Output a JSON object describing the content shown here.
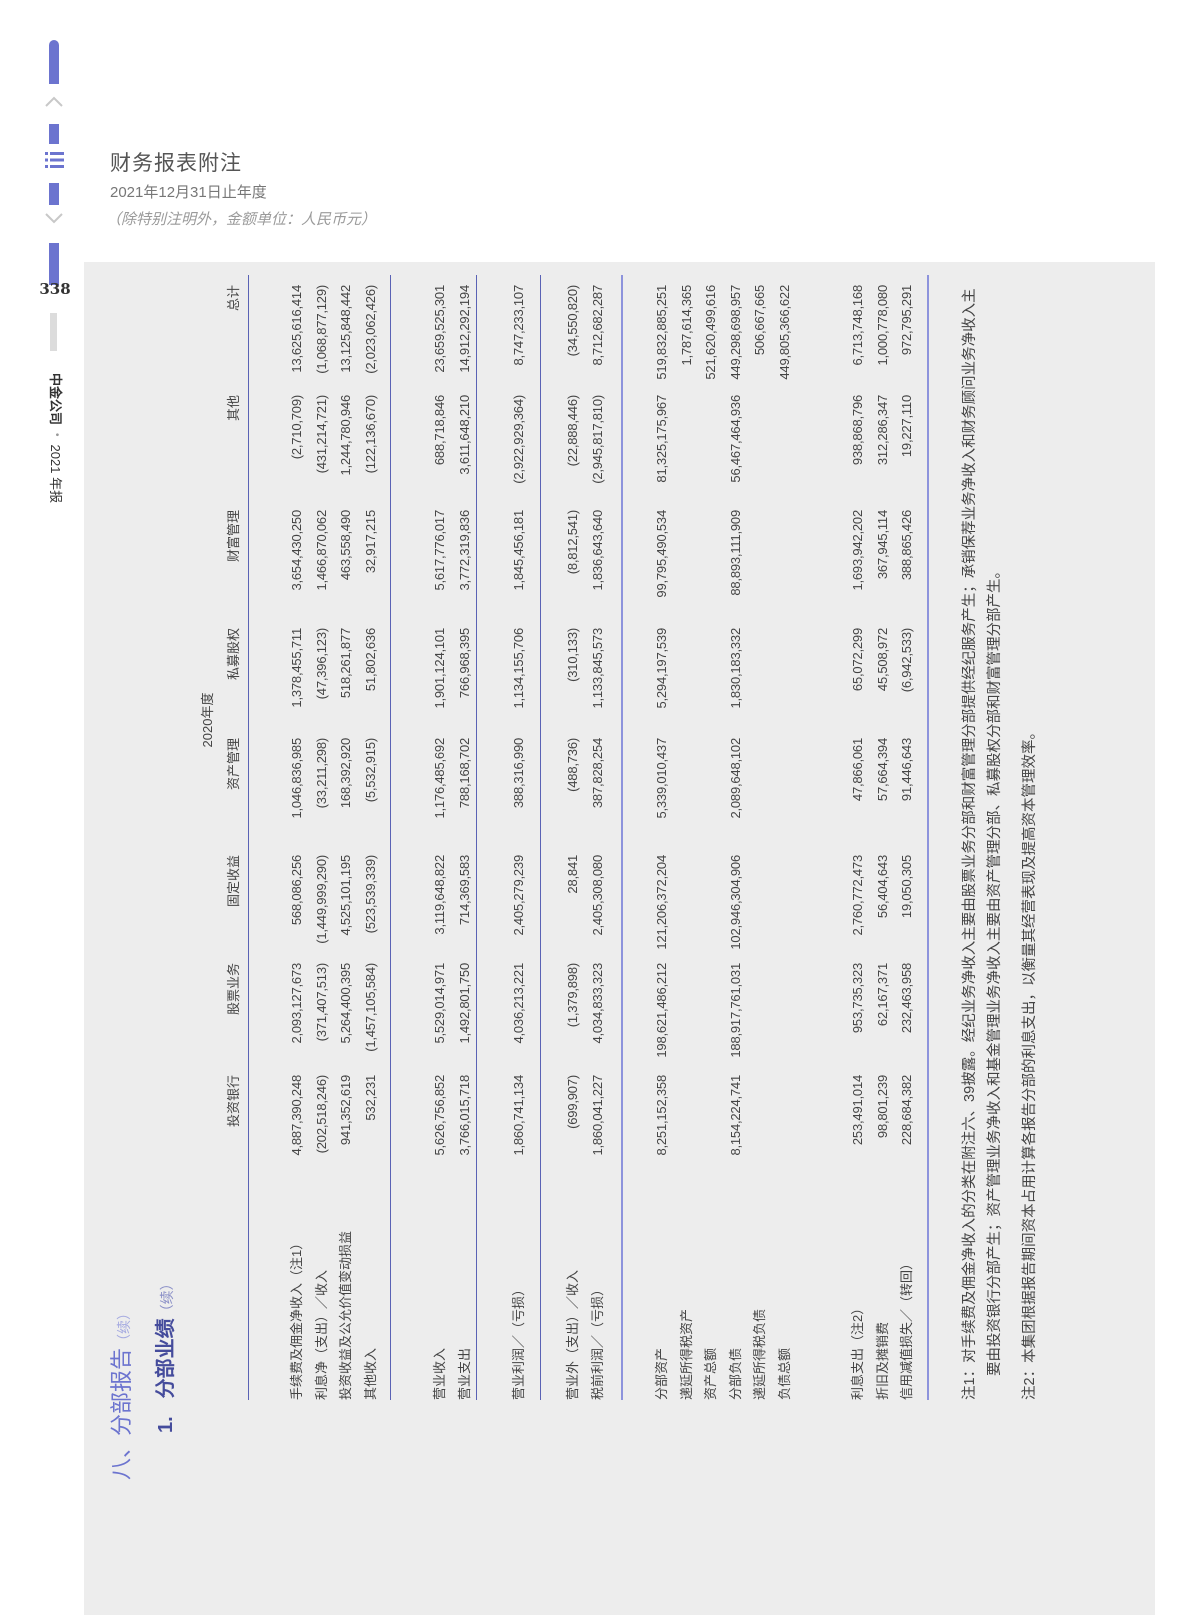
{
  "sidebar": {
    "page_number": "338",
    "company": "中金公司",
    "separator": "•",
    "report": "2021 年报",
    "accent_color": "#6c74cf"
  },
  "header": {
    "title": "财务报表附注",
    "period": "2021年12月31日止年度",
    "unit_note": "（除特别注明外，金额单位：人民币元）"
  },
  "section": {
    "title": "八、分部报告",
    "title_cont": "（续）",
    "sub_number": "1.",
    "sub_title": "分部业绩",
    "sub_cont": "（续）"
  },
  "table": {
    "year_label": "2020年度",
    "columns": [
      "投资银行",
      "股票业务",
      "固定收益",
      "资产管理",
      "私募股权",
      "财富管理",
      "其他",
      "总计"
    ],
    "groups": [
      [
        {
          "label": "手续费及佣金净收入（注1）",
          "values": [
            "4,887,390,248",
            "2,093,127,673",
            "568,086,256",
            "1,046,836,985",
            "1,378,455,711",
            "3,654,430,250",
            "(2,710,709)",
            "13,625,616,414"
          ]
        },
        {
          "label": "利息净（支出）／收入",
          "values": [
            "(202,518,246)",
            "(371,407,513)",
            "(1,449,999,290)",
            "(33,211,298)",
            "(47,396,123)",
            "1,466,870,062",
            "(431,214,721)",
            "(1,068,877,129)"
          ]
        },
        {
          "label": "投资收益及公允价值变动损益",
          "values": [
            "941,352,619",
            "5,264,400,395",
            "4,525,101,195",
            "168,392,920",
            "518,261,877",
            "463,558,490",
            "1,244,780,946",
            "13,125,848,442"
          ]
        },
        {
          "label": "其他收入",
          "values": [
            "532,231",
            "(1,457,105,584)",
            "(523,539,339)",
            "(5,532,915)",
            "51,802,636",
            "32,917,215",
            "(122,136,670)",
            "(2,023,062,426)"
          ]
        }
      ],
      [
        {
          "label": "营业收入",
          "values": [
            "5,626,756,852",
            "5,529,014,971",
            "3,119,648,822",
            "1,176,485,692",
            "1,901,124,101",
            "5,617,776,017",
            "688,718,846",
            "23,659,525,301"
          ]
        },
        {
          "label": "营业支出",
          "values": [
            "3,766,015,718",
            "1,492,801,750",
            "714,369,583",
            "788,168,702",
            "766,968,395",
            "3,772,319,836",
            "3,611,648,210",
            "14,912,292,194"
          ]
        }
      ],
      [
        {
          "label": "营业利润／（亏损）",
          "values": [
            "1,860,741,134",
            "4,036,213,221",
            "2,405,279,239",
            "388,316,990",
            "1,134,155,706",
            "1,845,456,181",
            "(2,922,929,364)",
            "8,747,233,107"
          ]
        }
      ],
      [
        {
          "label": "营业外（支出）／收入",
          "values": [
            "(699,907)",
            "(1,379,898)",
            "28,841",
            "(488,736)",
            "(310,133)",
            "(8,812,541)",
            "(22,888,446)",
            "(34,550,820)"
          ]
        },
        {
          "label": "税前利润／（亏损）",
          "values": [
            "1,860,041,227",
            "4,034,833,323",
            "2,405,308,080",
            "387,828,254",
            "1,133,845,573",
            "1,836,643,640",
            "(2,945,817,810)",
            "8,712,682,287"
          ]
        }
      ],
      [
        {
          "label": "分部资产",
          "values": [
            "8,251,152,358",
            "198,621,486,212",
            "121,206,372,204",
            "5,339,010,437",
            "5,294,197,539",
            "99,795,490,534",
            "81,325,175,967",
            "519,832,885,251"
          ]
        },
        {
          "label": "递延所得税资产",
          "values": [
            "",
            "",
            "",
            "",
            "",
            "",
            "",
            "1,787,614,365"
          ]
        },
        {
          "label": "资产总额",
          "values": [
            "",
            "",
            "",
            "",
            "",
            "",
            "",
            "521,620,499,616"
          ]
        },
        {
          "label": "分部负债",
          "values": [
            "8,154,224,741",
            "188,917,761,031",
            "102,946,304,906",
            "2,089,648,102",
            "1,830,183,332",
            "88,893,111,909",
            "56,467,464,936",
            "449,298,698,957"
          ]
        },
        {
          "label": "递延所得税负债",
          "values": [
            "",
            "",
            "",
            "",
            "",
            "",
            "",
            "506,667,665"
          ]
        },
        {
          "label": "负债总额",
          "values": [
            "",
            "",
            "",
            "",
            "",
            "",
            "",
            "449,805,366,622"
          ]
        }
      ],
      [
        {
          "label": "利息支出（注2）",
          "values": [
            "253,491,014",
            "953,735,323",
            "2,760,772,473",
            "47,866,061",
            "65,072,299",
            "1,693,942,202",
            "938,868,796",
            "6,713,748,168"
          ]
        },
        {
          "label": "折旧及摊销费",
          "values": [
            "98,801,239",
            "62,167,371",
            "56,404,643",
            "57,664,394",
            "45,508,972",
            "367,945,114",
            "312,286,347",
            "1,000,778,080"
          ]
        },
        {
          "label": "信用减值损失／（转回）",
          "values": [
            "228,684,382",
            "232,463,958",
            "19,050,305",
            "91,446,643",
            "(6,942,533)",
            "388,865,426",
            "19,227,110",
            "972,795,291"
          ]
        }
      ]
    ]
  },
  "notes": [
    "注1：对手续费及佣金净收入的分类在附注六、39披露。经纪业务净收入主要由股票业务分部和财富管理分部提供经纪服务产生；承销保荐业务净收入和财务顾问业务净收入主要由投资银行分部产生；资产管理业务净收入和基金管理业务净收入主要由资产管理分部、私募股权分部和财富管理分部产生。",
    "注2：本集团根据报告期间资本占用计算各报告分部的利息支出，以衡量其经营表现及提高资本管理效率。"
  ]
}
